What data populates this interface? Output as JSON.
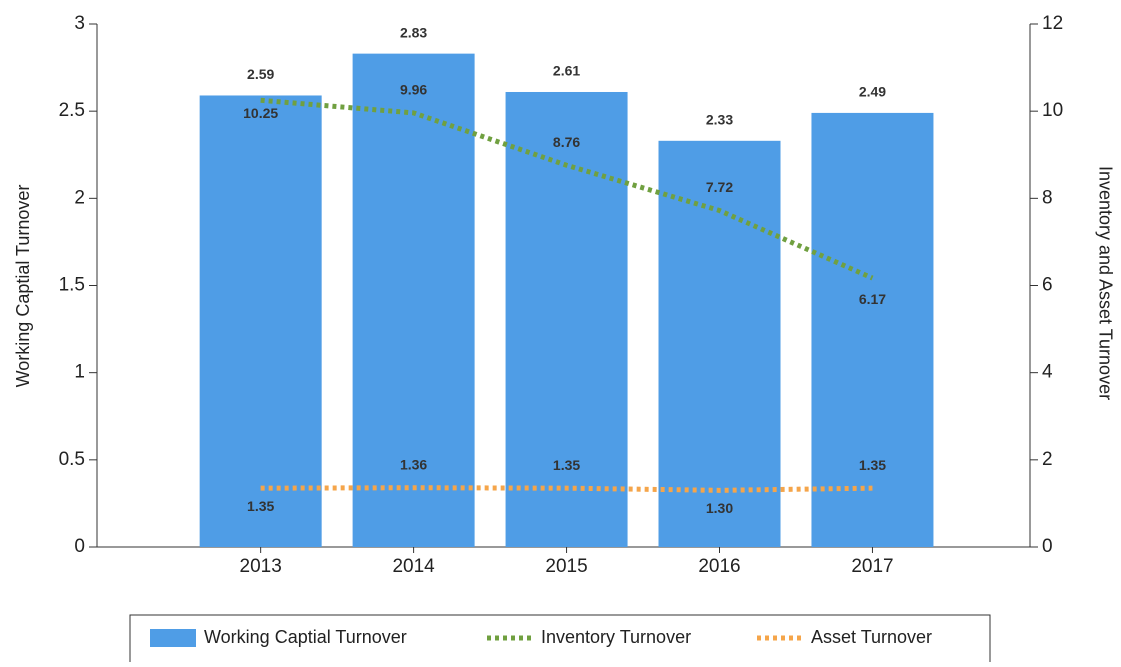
{
  "chart_data": {
    "type": "bar",
    "categories": [
      "2013",
      "2014",
      "2015",
      "2016",
      "2017"
    ],
    "y_label": "Working Captial Turnover",
    "y2_label": "Inventory and Asset Turnover",
    "ylim": [
      0,
      3
    ],
    "yticks": [
      0,
      0.5,
      1,
      1.5,
      2,
      2.5,
      3
    ],
    "y2lim": [
      0,
      12
    ],
    "y2ticks": [
      0,
      2,
      4,
      6,
      8,
      10,
      12
    ],
    "legend": "bottom",
    "series": [
      {
        "name": "Working Captial Turnover",
        "type": "bar",
        "color": "#4f9de6",
        "values": [
          2.59,
          2.83,
          2.61,
          2.33,
          2.49
        ]
      },
      {
        "name": "Inventory Turnover",
        "type": "line",
        "axis": "y2",
        "color": "#70a040",
        "values": [
          10.25,
          9.96,
          8.76,
          7.72,
          6.17
        ]
      },
      {
        "name": "Asset Turnover",
        "type": "line",
        "axis": "y2",
        "color": "#f5a54a",
        "values": [
          1.35,
          1.36,
          1.35,
          1.3,
          1.35
        ],
        "value_labels": [
          "1.35",
          "1.36",
          "1.35",
          "1.30",
          "1.35"
        ]
      }
    ]
  }
}
